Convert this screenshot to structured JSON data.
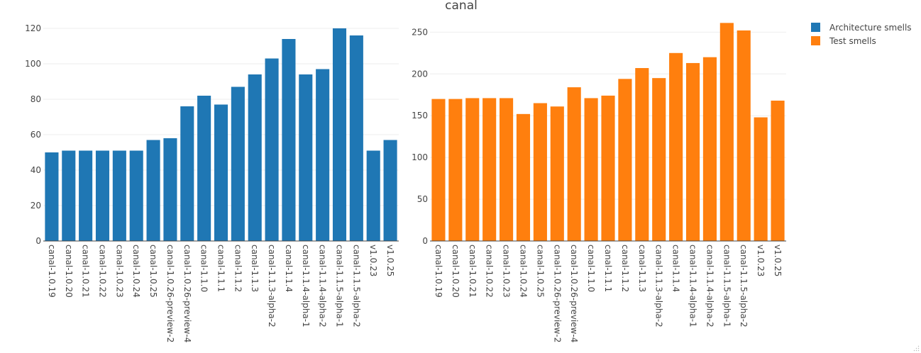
{
  "chart_data": {
    "type": "bar",
    "title": "canal",
    "legend": {
      "placement": "top-right",
      "entries": [
        {
          "name": "Architecture smells",
          "color": "#1f77b4"
        },
        {
          "name": "Test smells",
          "color": "#ff7f0e"
        }
      ]
    },
    "grid": true,
    "subplots": [
      {
        "series_name": "Architecture smells",
        "color": "#1f77b4",
        "ylim": [
          0,
          124
        ],
        "yticks": [
          0,
          20,
          40,
          60,
          80,
          100,
          120
        ],
        "categories": [
          "canal-1.0.19",
          "canal-1.0.20",
          "canal-1.0.21",
          "canal-1.0.22",
          "canal-1.0.23",
          "canal-1.0.24",
          "canal-1.0.25",
          "canal-1.0.26-preview-2",
          "canal-1.0.26-preview-4",
          "canal-1.1.0",
          "canal-1.1.1",
          "canal-1.1.2",
          "canal-1.1.3",
          "canal-1.1.3-alpha-2",
          "canal-1.1.4",
          "canal-1.1.4-alpha-1",
          "canal-1.1.4-alpha-2",
          "canal-1.1.5-alpha-1",
          "canal-1.1.5-alpha-2",
          "v1.0.23",
          "v1.0.25"
        ],
        "values": [
          50,
          51,
          51,
          51,
          51,
          51,
          57,
          58,
          76,
          82,
          77,
          87,
          94,
          103,
          114,
          94,
          97,
          120,
          116,
          51,
          57
        ]
      },
      {
        "series_name": "Test smells",
        "color": "#ff7f0e",
        "ylim": [
          0,
          263
        ],
        "yticks": [
          0,
          50,
          100,
          150,
          200,
          250
        ],
        "categories": [
          "canal-1.0.19",
          "canal-1.0.20",
          "canal-1.0.21",
          "canal-1.0.22",
          "canal-1.0.23",
          "canal-1.0.24",
          "canal-1.0.25",
          "canal-1.0.26-preview-2",
          "canal-1.0.26-preview-4",
          "canal-1.1.0",
          "canal-1.1.1",
          "canal-1.1.2",
          "canal-1.1.3",
          "canal-1.1.3-alpha-2",
          "canal-1.1.4",
          "canal-1.1.4-alpha-1",
          "canal-1.1.4-alpha-2",
          "canal-1.1.5-alpha-1",
          "canal-1.1.5-alpha-2",
          "v1.0.23",
          "v1.0.25"
        ],
        "values": [
          170,
          170,
          171,
          171,
          171,
          152,
          165,
          161,
          184,
          171,
          174,
          194,
          207,
          195,
          225,
          213,
          220,
          261,
          252,
          148,
          168
        ]
      }
    ]
  }
}
